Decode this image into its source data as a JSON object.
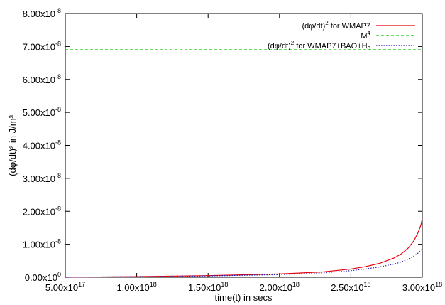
{
  "chart_data": {
    "type": "line",
    "title": "",
    "xlabel": "time(t) in secs",
    "ylabel": "(dφ/dt)² in J/m³",
    "xlim": [
      5e+17,
      3e+18
    ],
    "ylim": [
      0,
      8e-08
    ],
    "x_ticks": [
      5e+17,
      1e+18,
      1.5e+18,
      2e+18,
      2.5e+18,
      3e+18
    ],
    "y_ticks": [
      0,
      1e-08,
      2e-08,
      3e-08,
      4e-08,
      5e-08,
      6e-08,
      7e-08,
      8e-08
    ],
    "x_tick_labels": [
      {
        "mant": "5.00x10",
        "exp": "17"
      },
      {
        "mant": "1.00x10",
        "exp": "18"
      },
      {
        "mant": "1.50x10",
        "exp": "18"
      },
      {
        "mant": "2.00x10",
        "exp": "18"
      },
      {
        "mant": "2.50x10",
        "exp": "18"
      },
      {
        "mant": "3.00x10",
        "exp": "18"
      }
    ],
    "y_tick_labels": [
      {
        "mant": "0.00x10",
        "exp": "0"
      },
      {
        "mant": "1.00x10",
        "exp": "-8"
      },
      {
        "mant": "2.00x10",
        "exp": "-8"
      },
      {
        "mant": "3.00x10",
        "exp": "-8"
      },
      {
        "mant": "4.00x10",
        "exp": "-8"
      },
      {
        "mant": "5.00x10",
        "exp": "-8"
      },
      {
        "mant": "6.00x10",
        "exp": "-8"
      },
      {
        "mant": "7.00x10",
        "exp": "-8"
      },
      {
        "mant": "8.00x10",
        "exp": "-8"
      }
    ],
    "legend": {
      "placement": "top-right",
      "entries": [
        {
          "pre": "(dφ/dt)",
          "sup": "2",
          "post": " for WMAP7",
          "sub": ""
        },
        {
          "pre": "M",
          "sup": "4",
          "post": "",
          "sub": ""
        },
        {
          "pre": "(dφ/dt)",
          "sup": "2",
          "post": " for WMAP7+BAO+H",
          "sub": "0"
        }
      ]
    },
    "series": [
      {
        "style": "solid",
        "color": "#e8000b",
        "x": [
          5e+17,
          1e+18,
          1.5e+18,
          2e+18,
          2.3e+18,
          2.5e+18,
          2.6e+18,
          2.7e+18,
          2.8e+18,
          2.85e+18,
          2.9e+18,
          2.94e+18,
          2.97e+18,
          2.99e+18,
          3e+18
        ],
        "y": [
          0.0,
          2e-10,
          5e-10,
          1e-09,
          1.6e-09,
          2.5e-09,
          3.2e-09,
          4.2e-09,
          5.8e-09,
          7e-09,
          8.8e-09,
          1.1e-08,
          1.35e-08,
          1.58e-08,
          1.78e-08
        ]
      },
      {
        "style": "dashed",
        "color": "#16c80e",
        "x": [
          5e+17,
          3e+18
        ],
        "y": [
          6.9e-08,
          6.9e-08
        ]
      },
      {
        "style": "dotted",
        "color": "#1f1fb4",
        "x": [
          5e+17,
          1e+18,
          1.5e+18,
          2e+18,
          2.3e+18,
          2.5e+18,
          2.6e+18,
          2.7e+18,
          2.8e+18,
          2.85e+18,
          2.9e+18,
          2.94e+18,
          2.97e+18,
          3e+18
        ],
        "y": [
          0.0,
          2e-10,
          4e-10,
          8e-10,
          1.3e-09,
          2e-09,
          2.5e-09,
          3.1e-09,
          4e-09,
          4.6e-09,
          5.5e-09,
          6.4e-09,
          7.3e-09,
          8.6e-09
        ]
      }
    ]
  }
}
